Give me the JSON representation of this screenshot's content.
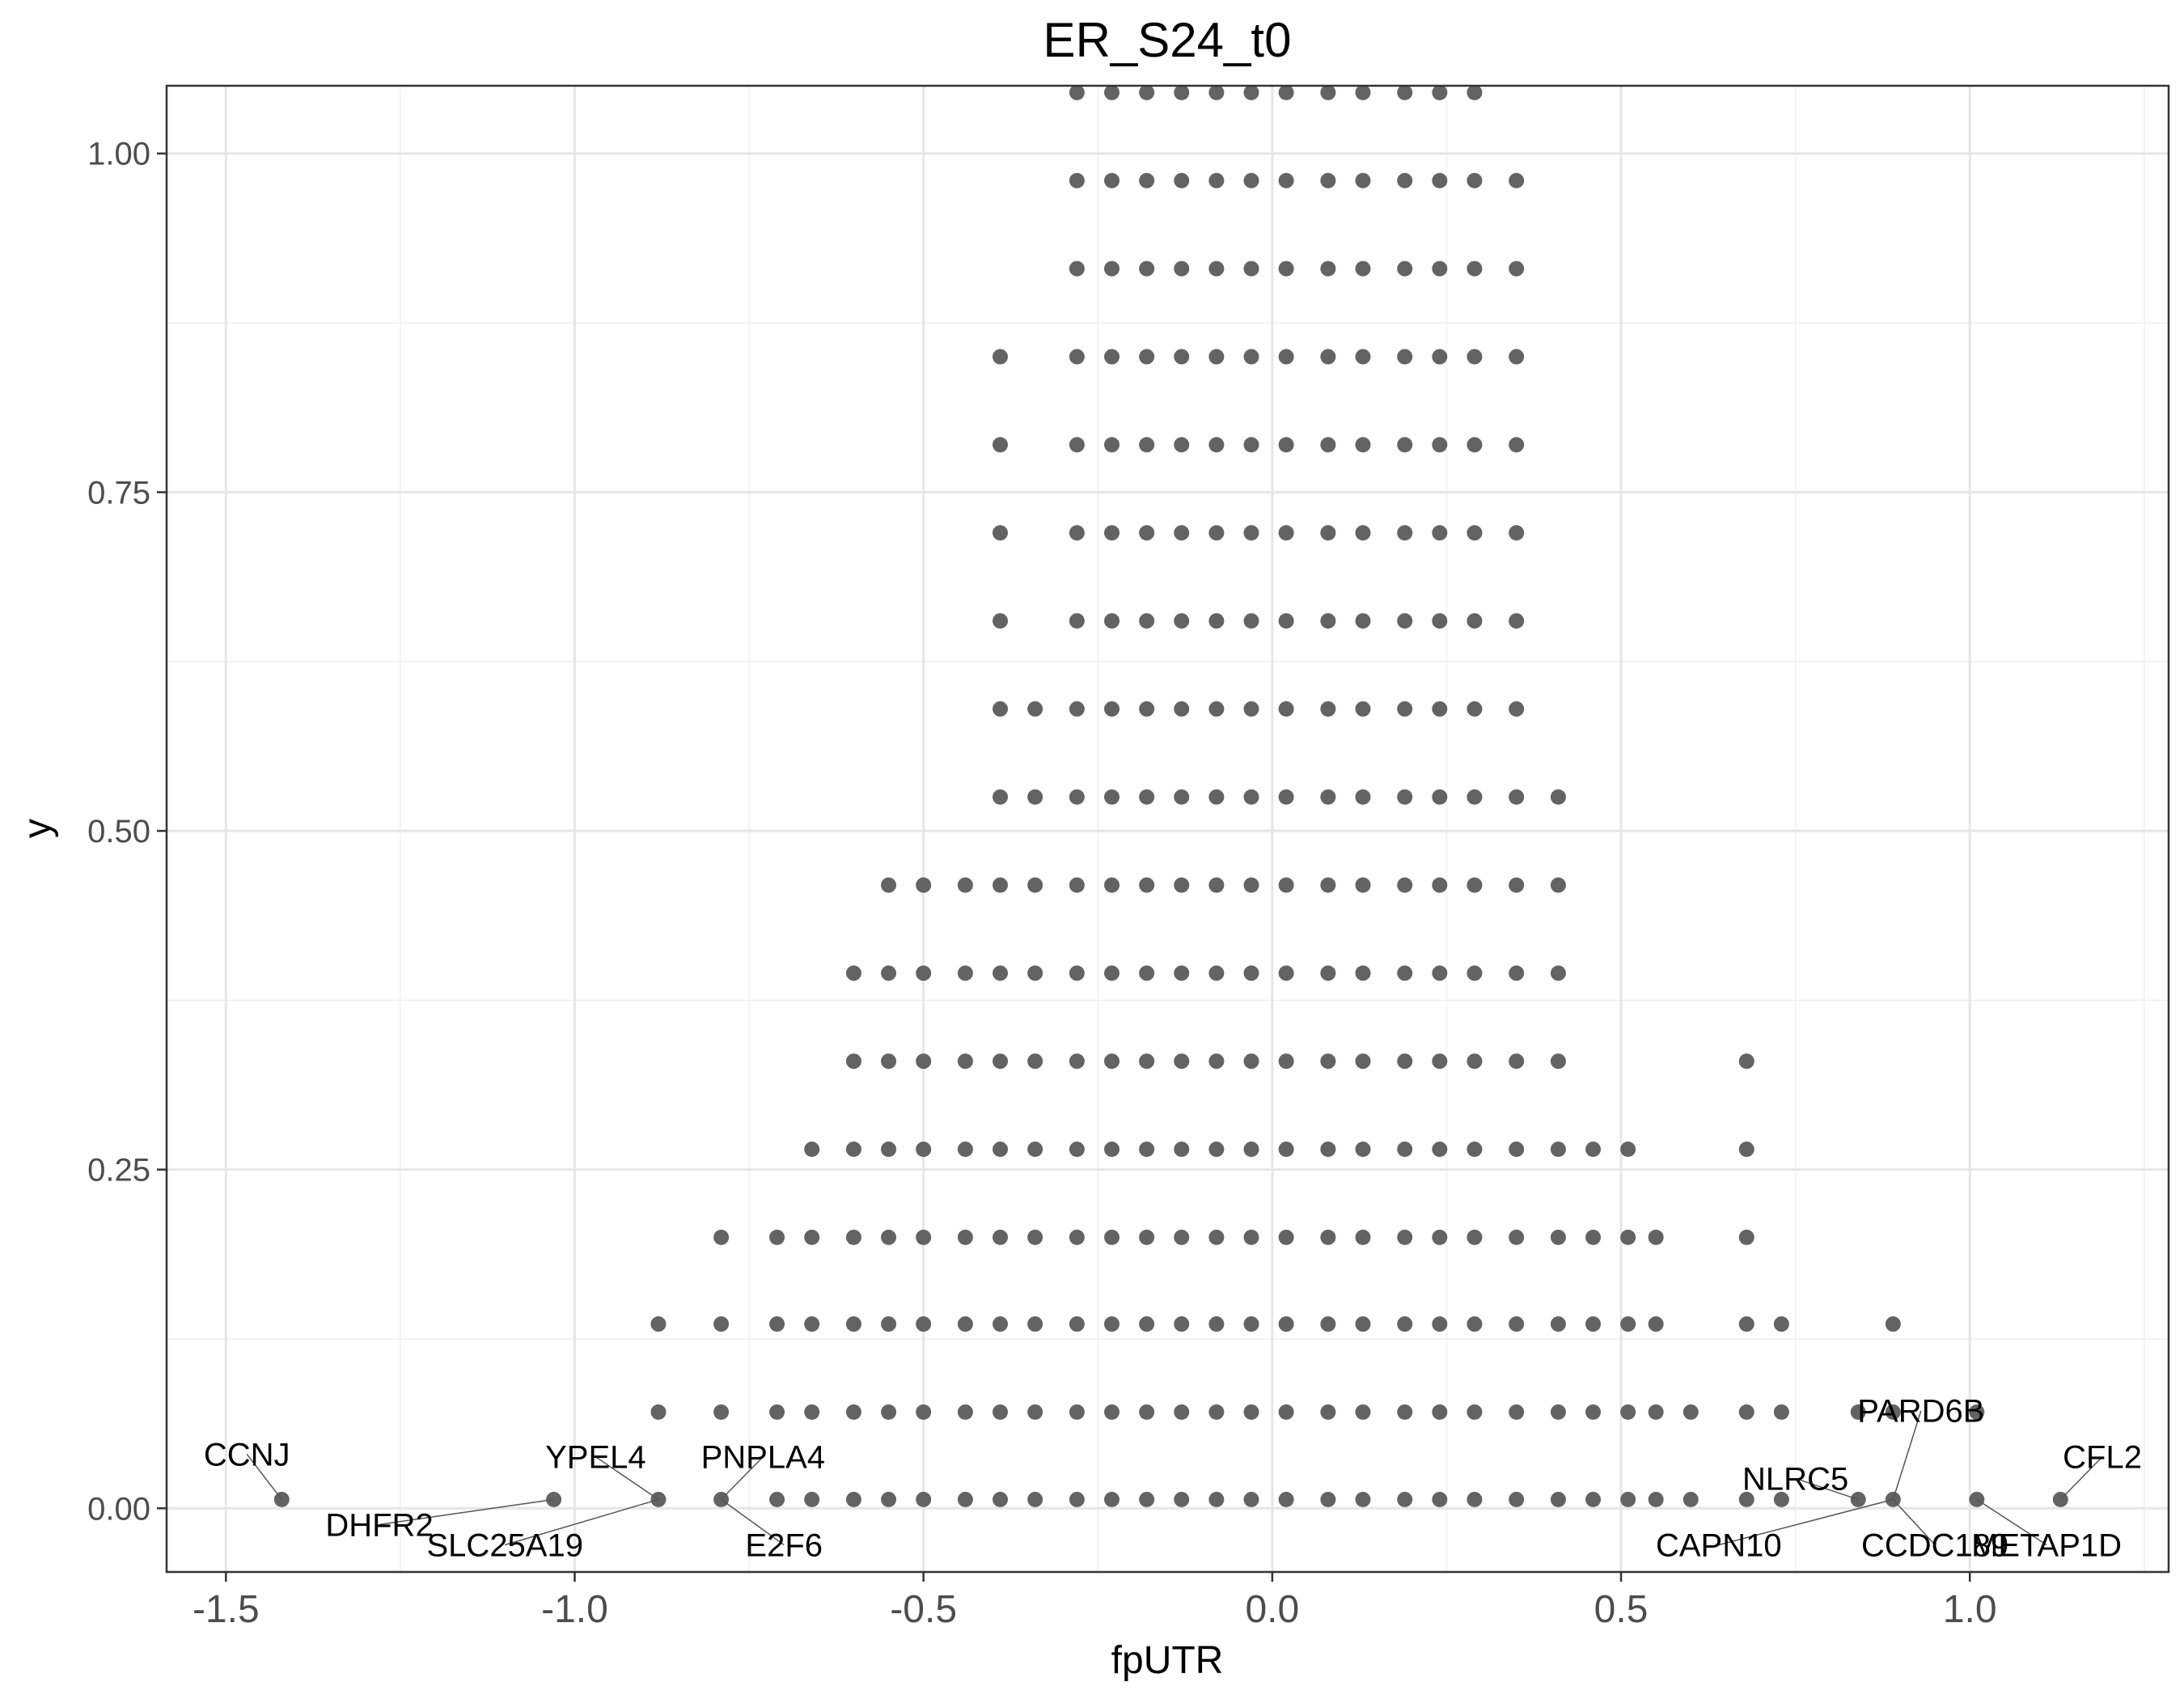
{
  "chart_data": {
    "type": "scatter",
    "title": "ER_S24_t0",
    "xlabel": "fpUTR",
    "ylabel": "y",
    "xlim": [
      -1.585,
      1.285
    ],
    "ylim": [
      -0.047,
      1.05
    ],
    "x_ticks": [
      -1.5,
      -1.0,
      -0.5,
      0.0,
      0.5,
      1.0
    ],
    "x_tick_labels": [
      "-1.5",
      "-1.0",
      "-0.5",
      "0.0",
      "0.5",
      "1.0"
    ],
    "y_ticks": [
      0.0,
      0.25,
      0.5,
      0.75,
      1.0
    ],
    "y_tick_labels": [
      "0.00",
      "0.25",
      "0.50",
      "0.75",
      "1.00"
    ],
    "grid": true,
    "point_color": "#636363",
    "rows": [
      {
        "y": 0.0065,
        "x": [
          -1.42,
          -1.03,
          -0.88,
          -0.79,
          -0.71,
          -0.66,
          -0.6,
          -0.55,
          -0.5,
          -0.44,
          -0.39,
          -0.34,
          -0.28,
          -0.23,
          -0.18,
          -0.13,
          -0.08,
          -0.03,
          0.02,
          0.08,
          0.13,
          0.19,
          0.24,
          0.29,
          0.35,
          0.41,
          0.46,
          0.51,
          0.55,
          0.6,
          0.68,
          0.73,
          0.84,
          0.89,
          1.01,
          1.13
        ]
      },
      {
        "y": 0.071,
        "x": [
          -0.88,
          -0.79,
          -0.71,
          -0.66,
          -0.6,
          -0.55,
          -0.5,
          -0.44,
          -0.39,
          -0.34,
          -0.28,
          -0.23,
          -0.18,
          -0.13,
          -0.08,
          -0.03,
          0.02,
          0.08,
          0.13,
          0.19,
          0.24,
          0.29,
          0.35,
          0.41,
          0.46,
          0.51,
          0.55,
          0.6,
          0.68,
          0.73,
          0.84,
          0.89,
          1.01
        ]
      },
      {
        "y": 0.136,
        "x": [
          -0.88,
          -0.79,
          -0.71,
          -0.66,
          -0.6,
          -0.55,
          -0.5,
          -0.44,
          -0.39,
          -0.34,
          -0.28,
          -0.23,
          -0.18,
          -0.13,
          -0.08,
          -0.03,
          0.02,
          0.08,
          0.13,
          0.19,
          0.24,
          0.29,
          0.35,
          0.41,
          0.46,
          0.51,
          0.55,
          0.68,
          0.73,
          0.89
        ]
      },
      {
        "y": 0.2,
        "x": [
          -0.79,
          -0.71,
          -0.66,
          -0.6,
          -0.55,
          -0.5,
          -0.44,
          -0.39,
          -0.34,
          -0.28,
          -0.23,
          -0.18,
          -0.13,
          -0.08,
          -0.03,
          0.02,
          0.08,
          0.13,
          0.19,
          0.24,
          0.29,
          0.35,
          0.41,
          0.46,
          0.51,
          0.55,
          0.68
        ]
      },
      {
        "y": 0.265,
        "x": [
          -0.66,
          -0.6,
          -0.55,
          -0.5,
          -0.44,
          -0.39,
          -0.34,
          -0.28,
          -0.23,
          -0.18,
          -0.13,
          -0.08,
          -0.03,
          0.02,
          0.08,
          0.13,
          0.19,
          0.24,
          0.29,
          0.35,
          0.41,
          0.46,
          0.51,
          0.68
        ]
      },
      {
        "y": 0.33,
        "x": [
          -0.6,
          -0.55,
          -0.5,
          -0.44,
          -0.39,
          -0.34,
          -0.28,
          -0.23,
          -0.18,
          -0.13,
          -0.08,
          -0.03,
          0.02,
          0.08,
          0.13,
          0.19,
          0.24,
          0.29,
          0.35,
          0.41,
          0.68
        ]
      },
      {
        "y": 0.395,
        "x": [
          -0.6,
          -0.55,
          -0.5,
          -0.44,
          -0.39,
          -0.34,
          -0.28,
          -0.23,
          -0.18,
          -0.13,
          -0.08,
          -0.03,
          0.02,
          0.08,
          0.13,
          0.19,
          0.24,
          0.29,
          0.35,
          0.41
        ]
      },
      {
        "y": 0.46,
        "x": [
          -0.55,
          -0.5,
          -0.44,
          -0.39,
          -0.34,
          -0.28,
          -0.23,
          -0.18,
          -0.13,
          -0.08,
          -0.03,
          0.02,
          0.08,
          0.13,
          0.19,
          0.24,
          0.29,
          0.35,
          0.41
        ]
      },
      {
        "y": 0.525,
        "x": [
          -0.39,
          -0.34,
          -0.28,
          -0.23,
          -0.18,
          -0.13,
          -0.08,
          -0.03,
          0.02,
          0.08,
          0.13,
          0.19,
          0.24,
          0.29,
          0.35,
          0.41
        ]
      },
      {
        "y": 0.59,
        "x": [
          -0.39,
          -0.34,
          -0.28,
          -0.23,
          -0.18,
          -0.13,
          -0.08,
          -0.03,
          0.02,
          0.08,
          0.13,
          0.19,
          0.24,
          0.29,
          0.35
        ]
      },
      {
        "y": 0.655,
        "x": [
          -0.39,
          -0.28,
          -0.23,
          -0.18,
          -0.13,
          -0.08,
          -0.03,
          0.02,
          0.08,
          0.13,
          0.19,
          0.24,
          0.29,
          0.35
        ]
      },
      {
        "y": 0.72,
        "x": [
          -0.39,
          -0.28,
          -0.23,
          -0.18,
          -0.13,
          -0.08,
          -0.03,
          0.02,
          0.08,
          0.13,
          0.19,
          0.24,
          0.29,
          0.35
        ]
      },
      {
        "y": 0.785,
        "x": [
          -0.39,
          -0.28,
          -0.23,
          -0.18,
          -0.13,
          -0.08,
          -0.03,
          0.02,
          0.08,
          0.13,
          0.19,
          0.24,
          0.29,
          0.35
        ]
      },
      {
        "y": 0.85,
        "x": [
          -0.39,
          -0.28,
          -0.23,
          -0.18,
          -0.13,
          -0.08,
          -0.03,
          0.02,
          0.08,
          0.13,
          0.19,
          0.24,
          0.29,
          0.35
        ]
      },
      {
        "y": 0.915,
        "x": [
          -0.28,
          -0.23,
          -0.18,
          -0.13,
          -0.08,
          -0.03,
          0.02,
          0.08,
          0.13,
          0.19,
          0.24,
          0.29,
          0.35
        ]
      },
      {
        "y": 0.98,
        "x": [
          -0.28,
          -0.23,
          -0.18,
          -0.13,
          -0.08,
          -0.03,
          0.02,
          0.08,
          0.13,
          0.19,
          0.24,
          0.29,
          0.35
        ]
      },
      {
        "y": 1.045,
        "x": [
          -0.28,
          -0.23,
          -0.18,
          -0.13,
          -0.08,
          -0.03,
          0.02,
          0.08,
          0.13,
          0.19,
          0.24,
          0.29
        ]
      }
    ],
    "annotations": [
      {
        "text": "CCNJ",
        "px": -1.42,
        "py": 0.0065,
        "lx": -1.47,
        "ly": 0.04
      },
      {
        "text": "DHFR2",
        "px": -1.03,
        "py": 0.0065,
        "lx": -1.28,
        "ly": -0.012
      },
      {
        "text": "YPEL4",
        "px": -0.88,
        "py": 0.0065,
        "lx": -0.97,
        "ly": 0.038
      },
      {
        "text": "SLC25A19",
        "px": -0.88,
        "py": 0.0065,
        "lx": -1.1,
        "ly": -0.027
      },
      {
        "text": "PNPLA4",
        "px": -0.79,
        "py": 0.0065,
        "lx": -0.73,
        "ly": 0.038
      },
      {
        "text": "E2F6",
        "px": -0.79,
        "py": 0.0065,
        "lx": -0.7,
        "ly": -0.027
      },
      {
        "text": "PARD6B",
        "px": 0.89,
        "py": 0.0065,
        "lx": 0.93,
        "ly": 0.072
      },
      {
        "text": "NLRC5",
        "px": 0.84,
        "py": 0.0065,
        "lx": 0.75,
        "ly": 0.022
      },
      {
        "text": "CFL2",
        "px": 1.13,
        "py": 0.0065,
        "lx": 1.19,
        "ly": 0.038
      },
      {
        "text": "CAPN10",
        "px": 0.89,
        "py": 0.0065,
        "lx": 0.64,
        "ly": -0.027
      },
      {
        "text": "CCDC189",
        "px": 0.89,
        "py": 0.0065,
        "lx": 0.95,
        "ly": -0.027
      },
      {
        "text": "METAP1D",
        "px": 1.01,
        "py": 0.0065,
        "lx": 1.11,
        "ly": -0.027
      }
    ]
  }
}
